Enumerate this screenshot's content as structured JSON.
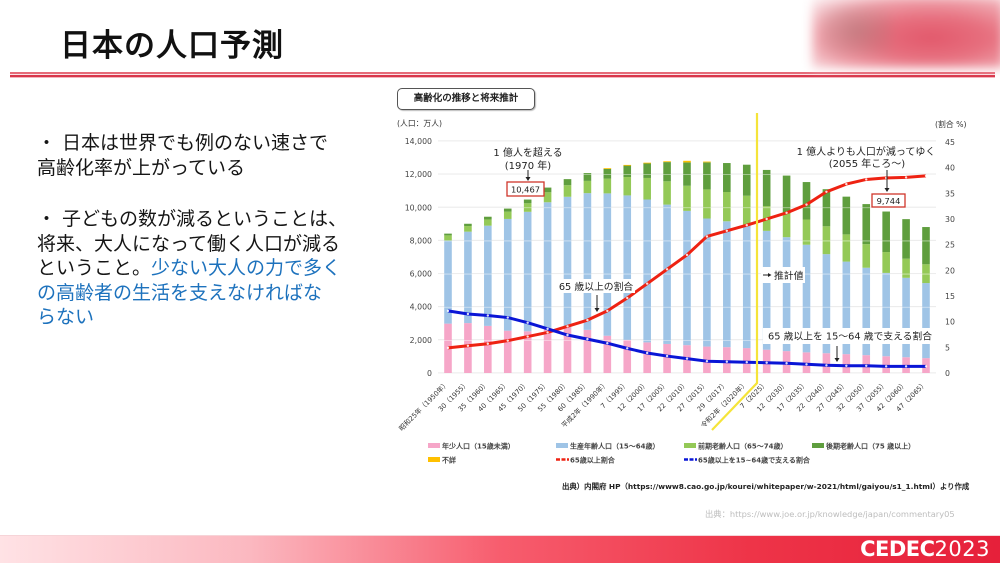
{
  "header": {
    "title": "日本の人口予測"
  },
  "body": {
    "bullet1": {
      "line1": "・ 日本は世界でも例のない速さで",
      "line2": "高齢化率が上がっている"
    },
    "bullet2": {
      "line1": "・ 子どもの数が減るということは、",
      "line2": "将来、大人になって働く人口が減る",
      "line3_black": "ということ。",
      "line3_blue": "少ない大人の力で多く",
      "line4": "の高齢者の生活を支えなければな",
      "line5": "らない"
    }
  },
  "colors": {
    "accent_red": "#e6203a",
    "emphasis_blue": "#1d72bd",
    "estimate_divider": "#f5e43a",
    "annotation_box_border": "#d0352b"
  },
  "chart_data": {
    "type": "bar",
    "stacked": true,
    "title": "高齢化の推移と将来推計",
    "ylabel": "(人口：万人)",
    "y2label": "(割合 %)",
    "ylim": [
      0,
      14000
    ],
    "yticks": [
      0,
      2000,
      4000,
      6000,
      8000,
      10000,
      12000,
      14000
    ],
    "ytick_labels": [
      "0",
      "2,000",
      "4,000",
      "6,000",
      "8,000",
      "10,000",
      "12,000",
      "14,000"
    ],
    "y2lim": [
      0,
      45
    ],
    "y2ticks": [
      0,
      5,
      10,
      15,
      20,
      25,
      30,
      35,
      40,
      45
    ],
    "y2tick_labels": [
      "0",
      "5",
      "10",
      "15",
      "20",
      "25",
      "30",
      "35",
      "40",
      "45"
    ],
    "grid": true,
    "categories": [
      "昭和25年（1950年）",
      "30（1955）",
      "35（1960）",
      "40（1965）",
      "45（1970）",
      "50（1975）",
      "55（1980）",
      "60（1985）",
      "平成2年（1990年）",
      "7（1995）",
      "12（2000）",
      "17（2005）",
      "22（2010）",
      "27（2015）",
      "29（2017）",
      "令和2年（2020年）",
      "7（2025）",
      "12（2030）",
      "17（2035）",
      "22（2040）",
      "27（2045）",
      "32（2050）",
      "37（2055）",
      "42（2060）",
      "47（2065）"
    ],
    "projection_starts_after": "令和2年（2020年）",
    "stacked_series": [
      {
        "name": "年少人口（15歳未満）",
        "color": "#f6a6c8",
        "values": [
          2979,
          3012,
          2843,
          2553,
          2515,
          2722,
          2751,
          2603,
          2249,
          2001,
          1847,
          1752,
          1680,
          1595,
          1559,
          1503,
          1407,
          1321,
          1246,
          1194,
          1138,
          1077,
          1012,
          951,
          898
        ]
      },
      {
        "name": "生産年齢人口（15〜64歳）",
        "color": "#9fc4e6",
        "values": [
          5017,
          5517,
          6047,
          6744,
          7212,
          7581,
          7883,
          8251,
          8590,
          8716,
          8622,
          8409,
          8103,
          7728,
          7596,
          7449,
          7170,
          6875,
          6494,
          5978,
          5584,
          5275,
          5028,
          4793,
          4529
        ]
      },
      {
        "name": "前期老齢人口（65〜74歳）",
        "color": "#94c957",
        "values": [
          309,
          338,
          376,
          438,
          516,
          602,
          699,
          739,
          892,
          1109,
          1301,
          1407,
          1517,
          1755,
          1767,
          1747,
          1497,
          1428,
          1522,
          1681,
          1643,
          1424,
          1258,
          1154,
          1133
        ]
      },
      {
        "name": "後期老齢人口（75 歳以上）",
        "color": "#5f9e3e",
        "values": [
          106,
          139,
          164,
          187,
          224,
          284,
          366,
          471,
          597,
          717,
          900,
          1160,
          1407,
          1632,
          1748,
          1871,
          2180,
          2288,
          2260,
          2239,
          2277,
          2417,
          2446,
          2387,
          2248
        ]
      },
      {
        "name": "不詳",
        "color": "#ffc000",
        "values": [
          0,
          0,
          0,
          0,
          0,
          0,
          0,
          0,
          33,
          14,
          23,
          49,
          99,
          50,
          0,
          0,
          0,
          0,
          0,
          0,
          0,
          0,
          0,
          0,
          0
        ]
      }
    ],
    "line_series": [
      {
        "name": "65歳以上割合",
        "color": "#ee2212",
        "axis": "right",
        "values": [
          4.9,
          5.3,
          5.7,
          6.3,
          7.1,
          7.9,
          9.1,
          10.3,
          12.1,
          14.6,
          17.4,
          20.2,
          23.0,
          26.6,
          27.7,
          28.8,
          30.0,
          31.2,
          32.8,
          35.3,
          36.8,
          37.7,
          38.0,
          38.1,
          38.4
        ]
      },
      {
        "name": "65歳以上を15~64歳で支える割合",
        "color": "#0a16d6",
        "axis": "right",
        "values": [
          12.1,
          11.5,
          11.2,
          10.8,
          9.8,
          8.6,
          7.4,
          6.6,
          5.8,
          4.8,
          3.9,
          3.3,
          2.8,
          2.3,
          2.2,
          2.1,
          2.0,
          1.9,
          1.7,
          1.5,
          1.4,
          1.4,
          1.3,
          1.3,
          1.3
        ]
      }
    ],
    "annotations": {
      "exceed_100m": {
        "line1": "1 億人を超える",
        "line2": "(1970 年)",
        "value": "10,467"
      },
      "below_100m": {
        "line1": "1 億人よりも人口が減ってゆく",
        "line2": "(2055 年ころ〜)",
        "value": "9,744"
      },
      "aging_rate": "65 歳以上の割合",
      "estimate": "推計値",
      "support_ratio": "65 歳以上を 15〜64 歳で支える割合"
    },
    "legend_position": "bottom"
  },
  "source": {
    "primary": "出典）内閣府 HP（https://www8.cao.go.jp/kourei/whitepaper/w-2021/html/gaiyou/s1_1.html）より作成",
    "secondary": "出典：https://www.joe.or.jp/knowledge/japan/commentary05"
  },
  "footer": {
    "logo_bold": "CEDEC",
    "logo_light": "2023"
  }
}
